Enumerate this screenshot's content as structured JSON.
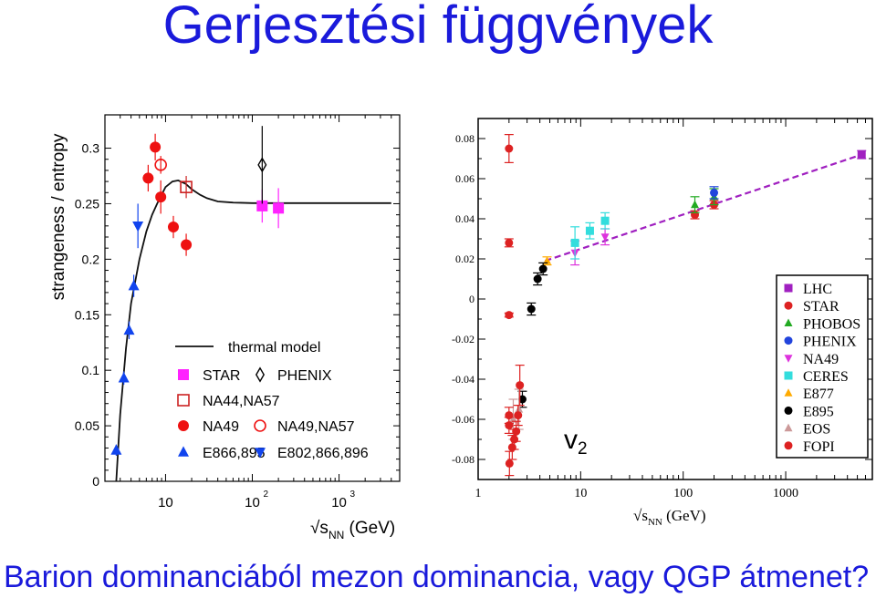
{
  "slide": {
    "title": "Gerjesztési függvények",
    "subtitle": "Barion dominanciából mezon dominancia, vagy QGP átmenet?"
  },
  "chart_data": [
    {
      "type": "scatter",
      "ylabel": "strangeness / entropy",
      "xlabel": "√s_NN (GeV)",
      "xlabel_main": "√s",
      "xlabel_sub": "NN",
      "xlabel_unit": "(GeV)",
      "xscale": "log",
      "xlim": [
        2,
        5000
      ],
      "ylim": [
        0,
        0.33
      ],
      "yticks": [
        "0",
        "0.05",
        "0.1",
        "0.15",
        "0.2",
        "0.25",
        "0.3"
      ],
      "xticks": [
        {
          "base": "10",
          "exp": ""
        },
        {
          "base": "10",
          "exp": "2"
        },
        {
          "base": "10",
          "exp": "3"
        }
      ],
      "legend_position": "bottom-right",
      "legend": [
        {
          "label": "thermal model",
          "marker": "line"
        },
        {
          "label": "STAR",
          "marker": "square",
          "color": "#ff22ff"
        },
        {
          "label": "PHENIX",
          "marker": "diamond-open",
          "color": "#000000"
        },
        {
          "label": "NA44,NA57",
          "marker": "square-open",
          "color": "#cc2222"
        },
        {
          "label": "NA49",
          "marker": "circle",
          "color": "#ee1111"
        },
        {
          "label": "NA49,NA57",
          "marker": "circle-open",
          "color": "#ee1111"
        },
        {
          "label": "E866,895",
          "marker": "triangle-up",
          "color": "#1144ee"
        },
        {
          "label": "E802,866,896",
          "marker": "triangle-down",
          "color": "#1144ee"
        }
      ],
      "series": [
        {
          "name": "thermal model",
          "kind": "line",
          "x": [
            2.7,
            3,
            3.5,
            4,
            5,
            6,
            7,
            8,
            9,
            10,
            12,
            14,
            17,
            20,
            25,
            30,
            40,
            60,
            100,
            200,
            500,
            1000,
            2000,
            4000
          ],
          "y": [
            0.0,
            0.06,
            0.12,
            0.16,
            0.2,
            0.225,
            0.24,
            0.25,
            0.258,
            0.265,
            0.27,
            0.271,
            0.268,
            0.263,
            0.258,
            0.255,
            0.252,
            0.251,
            0.2505,
            0.2505,
            0.2505,
            0.2505,
            0.2505,
            0.2505
          ]
        },
        {
          "name": "STAR",
          "marker": "square",
          "x": [
            130,
            200
          ],
          "y": [
            0.248,
            0.246
          ],
          "err": [
            0.015,
            0.018
          ]
        },
        {
          "name": "PHENIX",
          "marker": "diamond-open",
          "x": [
            130
          ],
          "y": [
            0.285
          ],
          "err": [
            0.035
          ]
        },
        {
          "name": "NA44,NA57",
          "marker": "square-open",
          "x": [
            17.3
          ],
          "y": [
            0.265
          ],
          "err": [
            0.01
          ]
        },
        {
          "name": "NA49",
          "marker": "circle",
          "x": [
            6.3,
            7.6,
            8.8,
            12.3,
            17.3
          ],
          "y": [
            0.273,
            0.301,
            0.256,
            0.229,
            0.213
          ],
          "err": [
            0.012,
            0.012,
            0.015,
            0.01,
            0.01
          ]
        },
        {
          "name": "NA49,NA57",
          "marker": "circle-open",
          "x": [
            8.8
          ],
          "y": [
            0.285
          ],
          "err": [
            0.008
          ]
        },
        {
          "name": "E866,895",
          "marker": "triangle-up",
          "x": [
            2.7,
            3.3,
            3.8,
            4.3
          ],
          "y": [
            0.028,
            0.093,
            0.136,
            0.176
          ],
          "err": [
            0.005,
            0.006,
            0.008,
            0.01
          ]
        },
        {
          "name": "E802,866,896",
          "marker": "triangle-down",
          "x": [
            4.8
          ],
          "y": [
            0.23
          ],
          "err": [
            0.02
          ]
        }
      ]
    },
    {
      "type": "scatter",
      "ylabel": "",
      "xlabel": "√s_NN (GeV)",
      "xlabel_main": "√s",
      "xlabel_sub": "NN",
      "xlabel_unit": "(GeV)",
      "annotation": "v2",
      "annotation_main": "v",
      "annotation_sub": "2",
      "xscale": "log",
      "xlim": [
        1,
        7000
      ],
      "ylim": [
        -0.09,
        0.09
      ],
      "yticks": [
        "0.08",
        "0.06",
        "0.04",
        "0.02",
        "0",
        "-0.02",
        "-0.04",
        "-0.06",
        "-0.08"
      ],
      "xticks": [
        "1",
        "10",
        "100",
        "1000"
      ],
      "legend_position": "right",
      "legend": [
        {
          "label": "LHC",
          "marker": "square",
          "color": "#a020c0"
        },
        {
          "label": "STAR",
          "marker": "circle",
          "color": "#dd2222"
        },
        {
          "label": "PHOBOS",
          "marker": "triangle-up",
          "color": "#22aa22"
        },
        {
          "label": "PHENIX",
          "marker": "circle",
          "color": "#2244dd"
        },
        {
          "label": "NA49",
          "marker": "triangle-down",
          "color": "#dd33dd"
        },
        {
          "label": "CERES",
          "marker": "square",
          "color": "#33dddd"
        },
        {
          "label": "E877",
          "marker": "triangle-up",
          "color": "#ffaa00"
        },
        {
          "label": "E895",
          "marker": "circle",
          "color": "#000000"
        },
        {
          "label": "EOS",
          "marker": "triangle-up",
          "color": "#cc9999"
        },
        {
          "label": "FOPI",
          "marker": "circle",
          "color": "#dd2222"
        }
      ],
      "trend": {
        "x": [
          4.5,
          5500
        ],
        "y": [
          0.019,
          0.072
        ]
      },
      "series": [
        {
          "name": "LHC",
          "color": "#a020c0",
          "marker": "square",
          "x": [
            5500
          ],
          "y": [
            0.072
          ],
          "err": [
            0.002
          ]
        },
        {
          "name": "STAR",
          "color": "#dd2222",
          "marker": "circle",
          "x": [
            130,
            200
          ],
          "y": [
            0.042,
            0.047
          ],
          "err": [
            0.002,
            0.002
          ]
        },
        {
          "name": "PHOBOS",
          "color": "#22aa22",
          "marker": "triangle-up",
          "x": [
            130,
            200
          ],
          "y": [
            0.047,
            0.051
          ],
          "err": [
            0.004,
            0.004
          ]
        },
        {
          "name": "PHENIX",
          "color": "#2244dd",
          "marker": "circle",
          "x": [
            200
          ],
          "y": [
            0.053
          ],
          "err": [
            0.003
          ]
        },
        {
          "name": "NA49",
          "color": "#dd33dd",
          "marker": "triangle-down",
          "x": [
            8.8,
            17.3
          ],
          "y": [
            0.023,
            0.031
          ],
          "err": [
            0.006,
            0.004
          ]
        },
        {
          "name": "CERES",
          "color": "#33dddd",
          "marker": "square",
          "x": [
            8.8,
            12.3,
            17.3
          ],
          "y": [
            0.028,
            0.034,
            0.039
          ],
          "err": [
            0.008,
            0.004,
            0.004
          ]
        },
        {
          "name": "E877",
          "color": "#ffaa00",
          "marker": "triangle-up",
          "x": [
            4.7
          ],
          "y": [
            0.019
          ],
          "err": [
            0.002
          ]
        },
        {
          "name": "E895",
          "color": "#000000",
          "marker": "circle",
          "x": [
            2.7,
            3.3,
            3.8,
            4.3
          ],
          "y": [
            -0.05,
            -0.005,
            0.01,
            0.015
          ],
          "err": [
            0.004,
            0.003,
            0.003,
            0.003
          ]
        },
        {
          "name": "EOS",
          "color": "#cc9999",
          "marker": "triangle-up",
          "x": [
            2.2,
            2.5
          ],
          "y": [
            -0.06,
            -0.055
          ],
          "err": [
            0.01,
            0.01
          ]
        },
        {
          "name": "FOPI",
          "color": "#dd2222",
          "marker": "circle",
          "x": [
            2.0,
            2.0,
            2.0,
            2.02,
            2.15,
            2.25,
            2.35,
            2.45,
            2.55,
            2.0,
            2.0
          ],
          "y": [
            0.075,
            0.028,
            -0.008,
            -0.082,
            -0.074,
            -0.07,
            -0.066,
            -0.058,
            -0.043,
            -0.058,
            -0.063
          ],
          "err": [
            0.007,
            0.002,
            0.001,
            0.006,
            0.006,
            0.005,
            0.005,
            0.005,
            0.01,
            0.004,
            0.004
          ]
        }
      ]
    }
  ]
}
